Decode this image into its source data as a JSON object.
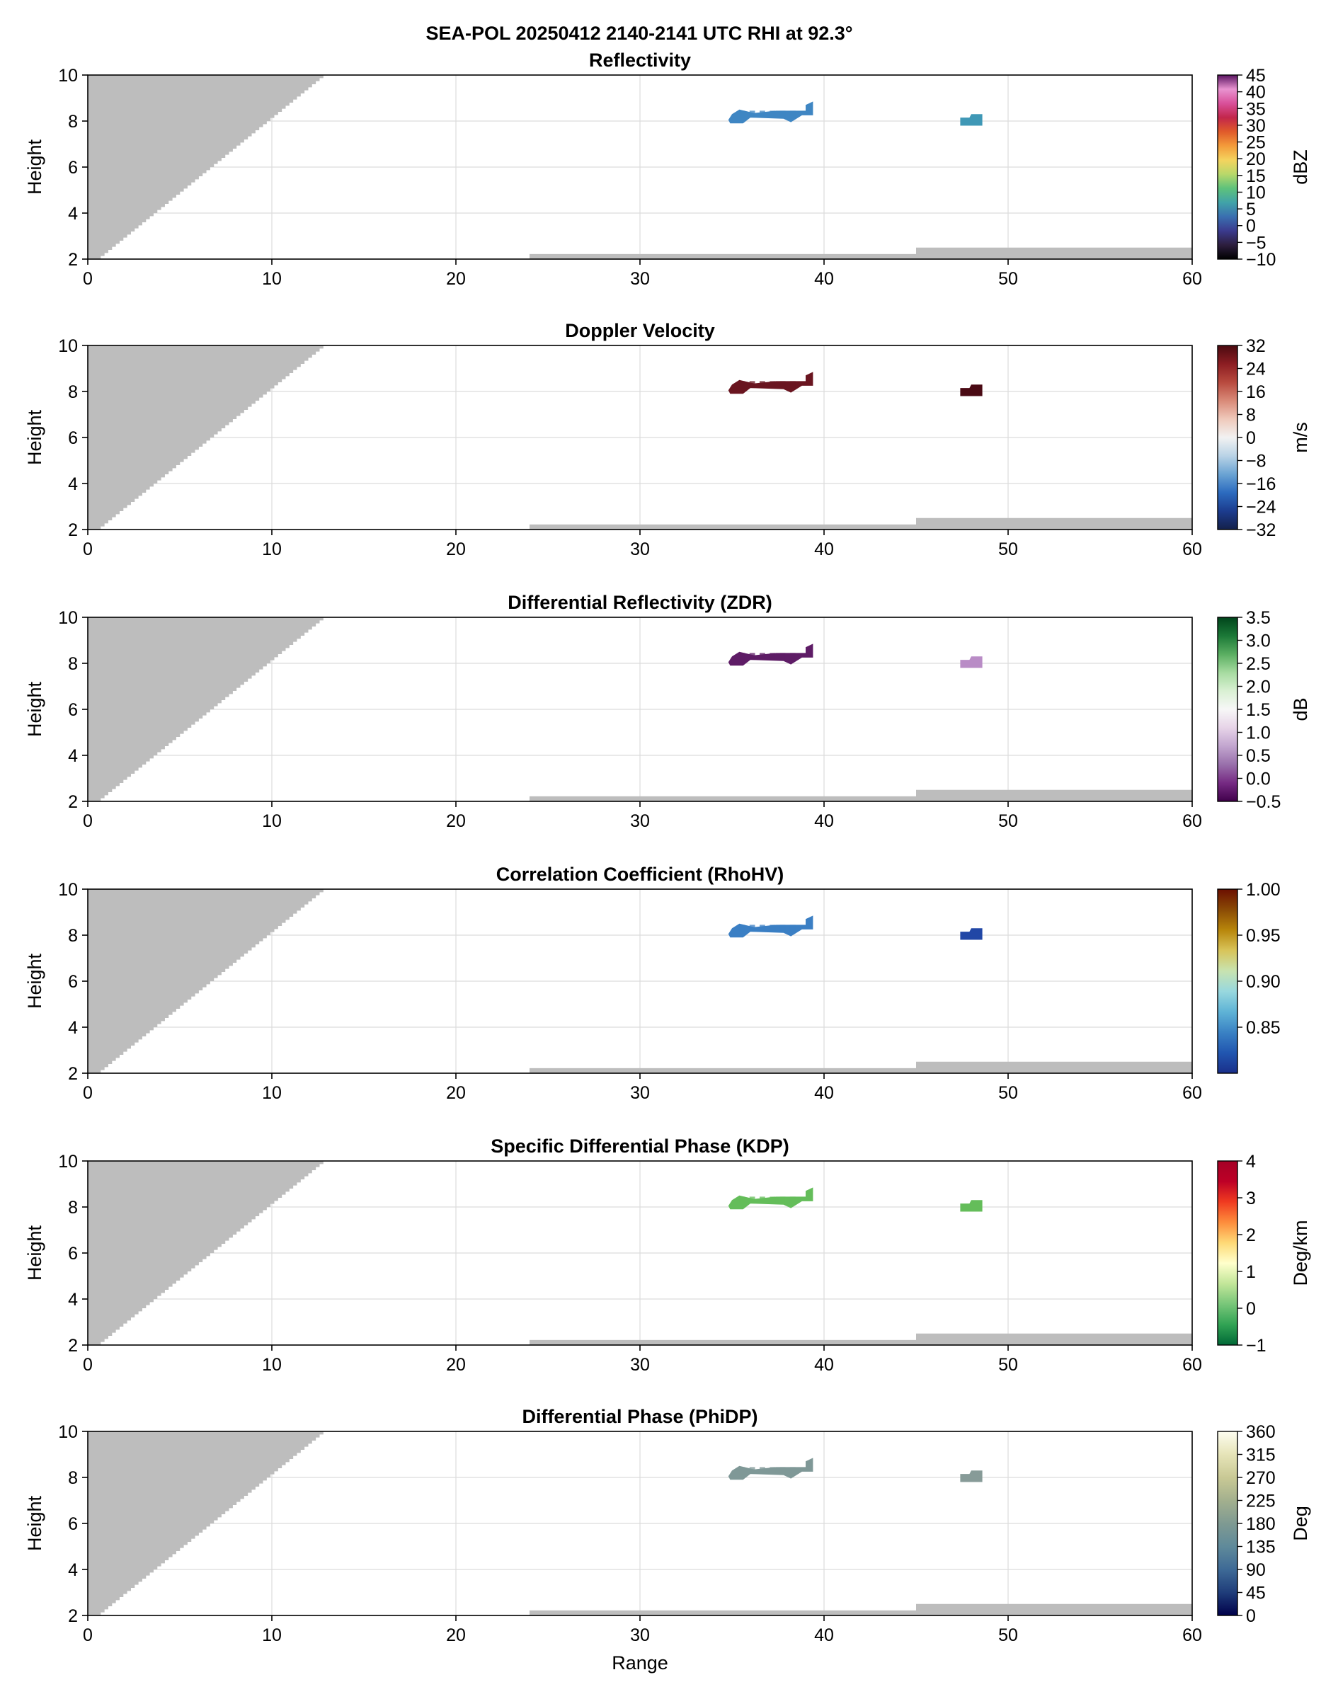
{
  "figure": {
    "suptitle": "SEA-POL 20250412 2140-2141 UTC RHI at 92.3°"
  },
  "chart_data": [
    {
      "type": "heatmap",
      "title": "Reflectivity",
      "xlabel": "",
      "ylabel": "Height",
      "xlim": [
        0,
        60
      ],
      "ylim": [
        2,
        10
      ],
      "xticks": [
        0,
        10,
        20,
        30,
        40,
        50,
        60
      ],
      "yticks": [
        2,
        4,
        6,
        8,
        10
      ],
      "grid": true,
      "colorbar": {
        "label": "dBZ",
        "range": [
          -10,
          45
        ],
        "ticks": [
          -10,
          -5,
          0,
          5,
          10,
          15,
          20,
          25,
          30,
          35,
          40,
          45
        ],
        "tick_labels": [
          "−10",
          "−5",
          "0",
          "5",
          "10",
          "15",
          "20",
          "25",
          "30",
          "35",
          "40",
          "45"
        ],
        "colors": [
          "#000000",
          "#2d1e3e",
          "#3b3b8e",
          "#3a6fb0",
          "#41a3a8",
          "#5ec27b",
          "#b8d86a",
          "#f4d35e",
          "#f39b3a",
          "#e05a2a",
          "#c2264b",
          "#d9509a",
          "#e893d0",
          "#5a1461"
        ]
      },
      "echoes": [
        {
          "name": "echo-main",
          "range_km": [
            34.8,
            39.4
          ],
          "height_km": [
            7.9,
            8.8
          ],
          "color": "#3f86c3"
        },
        {
          "name": "echo-small",
          "range_km": [
            47.4,
            48.6
          ],
          "height_km": [
            7.8,
            8.3
          ],
          "color": "#3f98b6"
        }
      ]
    },
    {
      "type": "heatmap",
      "title": "Doppler Velocity",
      "xlabel": "",
      "ylabel": "Height",
      "xlim": [
        0,
        60
      ],
      "ylim": [
        2,
        10
      ],
      "xticks": [
        0,
        10,
        20,
        30,
        40,
        50,
        60
      ],
      "yticks": [
        2,
        4,
        6,
        8,
        10
      ],
      "grid": true,
      "colorbar": {
        "label": "m/s",
        "range": [
          -32,
          32
        ],
        "ticks": [
          -32,
          -24,
          -16,
          -8,
          0,
          8,
          16,
          24,
          32
        ],
        "tick_labels": [
          "−32",
          "−24",
          "−16",
          "−8",
          "0",
          "8",
          "16",
          "24",
          "32"
        ],
        "colors": [
          "#14204a",
          "#1c3c8e",
          "#2c6bbf",
          "#6aa3d3",
          "#b9d3e6",
          "#f2f2f2",
          "#efc9bb",
          "#d98a78",
          "#b84a3e",
          "#8c1d22",
          "#4a0a10"
        ]
      },
      "echoes": [
        {
          "name": "echo-main",
          "range_km": [
            34.8,
            39.4
          ],
          "height_km": [
            7.9,
            8.8
          ],
          "color": "#6a1520"
        },
        {
          "name": "echo-small",
          "range_km": [
            47.4,
            48.6
          ],
          "height_km": [
            7.8,
            8.3
          ],
          "color": "#4a0a14"
        }
      ]
    },
    {
      "type": "heatmap",
      "title": "Differential Reflectivity (ZDR)",
      "xlabel": "",
      "ylabel": "Height",
      "xlim": [
        0,
        60
      ],
      "ylim": [
        2,
        10
      ],
      "xticks": [
        0,
        10,
        20,
        30,
        40,
        50,
        60
      ],
      "yticks": [
        2,
        4,
        6,
        8,
        10
      ],
      "grid": true,
      "colorbar": {
        "label": "dB",
        "range": [
          -0.5,
          3.5
        ],
        "ticks": [
          -0.5,
          0.0,
          0.5,
          1.0,
          1.5,
          2.0,
          2.5,
          3.0,
          3.5
        ],
        "tick_labels": [
          "−0.5",
          "0.0",
          "0.5",
          "1.0",
          "1.5",
          "2.0",
          "2.5",
          "3.0",
          "3.5"
        ],
        "colors": [
          "#40004b",
          "#762a83",
          "#9970ab",
          "#c2a5cf",
          "#e7d4e8",
          "#f7f7f7",
          "#d9f0d3",
          "#a6dba0",
          "#5aae61",
          "#1b7837",
          "#00441b"
        ]
      },
      "echoes": [
        {
          "name": "echo-main",
          "range_km": [
            34.8,
            39.4
          ],
          "height_km": [
            7.9,
            8.8
          ],
          "color": "#5e1c66"
        },
        {
          "name": "echo-small",
          "range_km": [
            47.4,
            48.6
          ],
          "height_km": [
            7.8,
            8.3
          ],
          "color": "#b98cc6"
        }
      ]
    },
    {
      "type": "heatmap",
      "title": "Correlation Coefficient (RhoHV)",
      "xlabel": "",
      "ylabel": "Height",
      "xlim": [
        0,
        60
      ],
      "ylim": [
        2,
        10
      ],
      "xticks": [
        0,
        10,
        20,
        30,
        40,
        50,
        60
      ],
      "yticks": [
        2,
        4,
        6,
        8,
        10
      ],
      "grid": true,
      "colorbar": {
        "label": "",
        "range": [
          0.8,
          1.0
        ],
        "ticks": [
          0.85,
          0.9,
          0.95,
          1.0
        ],
        "tick_labels": [
          "0.85",
          "0.90",
          "0.95",
          "1.00"
        ],
        "colors": [
          "#1a2f8a",
          "#2156b0",
          "#3a82c4",
          "#5fb3d6",
          "#98d8de",
          "#c8e3b0",
          "#d8c45a",
          "#b8860b",
          "#8a4a05",
          "#6b0f00"
        ]
      },
      "echoes": [
        {
          "name": "echo-main",
          "range_km": [
            34.8,
            39.4
          ],
          "height_km": [
            7.9,
            8.8
          ],
          "color": "#3b7fc4"
        },
        {
          "name": "echo-small",
          "range_km": [
            47.4,
            48.6
          ],
          "height_km": [
            7.8,
            8.3
          ],
          "color": "#2147a6"
        }
      ]
    },
    {
      "type": "heatmap",
      "title": "Specific Differential Phase (KDP)",
      "xlabel": "",
      "ylabel": "Height",
      "xlim": [
        0,
        60
      ],
      "ylim": [
        2,
        10
      ],
      "xticks": [
        0,
        10,
        20,
        30,
        40,
        50,
        60
      ],
      "yticks": [
        2,
        4,
        6,
        8,
        10
      ],
      "grid": true,
      "colorbar": {
        "label": "Deg/km",
        "range": [
          -1,
          4
        ],
        "ticks": [
          -1,
          0,
          1,
          2,
          3,
          4
        ],
        "tick_labels": [
          "−1",
          "0",
          "1",
          "2",
          "3",
          "4"
        ],
        "colors": [
          "#006837",
          "#31a354",
          "#78c679",
          "#c2e699",
          "#ffffcc",
          "#fed976",
          "#fd8d3c",
          "#f03b20",
          "#bd0026",
          "#a50026"
        ]
      },
      "echoes": [
        {
          "name": "echo-main",
          "range_km": [
            34.8,
            39.4
          ],
          "height_km": [
            7.9,
            8.8
          ],
          "color": "#64bd5a"
        },
        {
          "name": "echo-small",
          "range_km": [
            47.4,
            48.6
          ],
          "height_km": [
            7.8,
            8.3
          ],
          "color": "#64bd5a"
        }
      ]
    },
    {
      "type": "heatmap",
      "title": "Differential Phase (PhiDP)",
      "xlabel": "Range",
      "ylabel": "Height",
      "xlim": [
        0,
        60
      ],
      "ylim": [
        2,
        10
      ],
      "xticks": [
        0,
        10,
        20,
        30,
        40,
        50,
        60
      ],
      "yticks": [
        2,
        4,
        6,
        8,
        10
      ],
      "grid": true,
      "colorbar": {
        "label": "Deg",
        "range": [
          0,
          360
        ],
        "ticks": [
          0,
          45,
          90,
          135,
          180,
          225,
          270,
          315,
          360
        ],
        "tick_labels": [
          "0",
          "45",
          "90",
          "135",
          "180",
          "225",
          "270",
          "315",
          "360"
        ],
        "colors": [
          "#00004a",
          "#1f3d7a",
          "#3e6a96",
          "#5f8a9a",
          "#7f9a92",
          "#a3b08e",
          "#c9c995",
          "#e6e4b8",
          "#fdfdf0"
        ]
      },
      "echoes": [
        {
          "name": "echo-main",
          "range_km": [
            34.8,
            39.4
          ],
          "height_km": [
            7.9,
            8.8
          ],
          "color": "#7f9897"
        },
        {
          "name": "echo-small",
          "range_km": [
            47.4,
            48.6
          ],
          "height_km": [
            7.8,
            8.3
          ],
          "color": "#879b98"
        }
      ]
    }
  ],
  "blockage": {
    "color": "#bdbdbd",
    "left_wedge": {
      "x_at_top": 12.8,
      "x_at_bottom": 0.5,
      "height_bottom": 2.0
    },
    "ground_bands": [
      {
        "x0": 24.0,
        "x1": 45.0,
        "height_top": 2.22
      },
      {
        "x0": 45.0,
        "x1": 60.0,
        "height_top": 2.5
      }
    ]
  }
}
